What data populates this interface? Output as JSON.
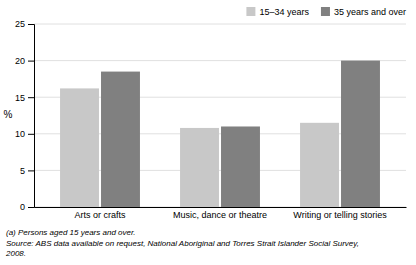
{
  "chart_data": {
    "type": "bar",
    "categories": [
      "Arts or crafts",
      "Music, dance or theatre",
      "Writing or telling stories"
    ],
    "series": [
      {
        "name": "15–34 years",
        "color": "#c8c8c8",
        "values": [
          16.2,
          10.8,
          11.5
        ]
      },
      {
        "name": "35 years and over",
        "color": "#808080",
        "values": [
          18.5,
          11.0,
          20.0
        ]
      }
    ],
    "y_label": "%",
    "ylim": [
      0,
      25
    ],
    "yticks": [
      0,
      5,
      10,
      15,
      20,
      25
    ],
    "grid": true,
    "legend": "upper right",
    "annotations": [
      "(a) Persons aged 15 years and over.",
      "Source: ABS data available on request, National Aboriginal and Torres Strait Islander Social Survey,\n2008."
    ]
  }
}
